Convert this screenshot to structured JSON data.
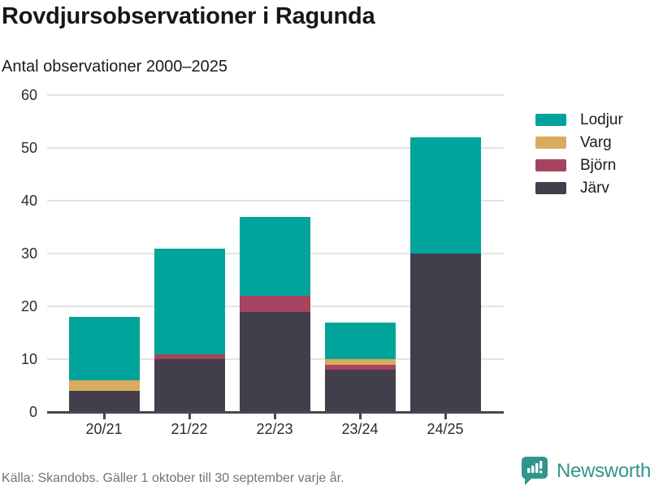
{
  "header": {
    "title": "Rovdjursobservationer i Ragunda",
    "subtitle": "Antal observationer 2000–2025"
  },
  "chart_data": {
    "type": "bar",
    "stacked": true,
    "title": "Rovdjursobservationer i Ragunda",
    "subtitle": "Antal observationer 2000–2025",
    "categories": [
      "20/21",
      "21/22",
      "22/23",
      "23/24",
      "24/25"
    ],
    "series": [
      {
        "name": "Järv",
        "color": "#423E4C",
        "values": [
          4,
          10,
          19,
          8,
          30
        ]
      },
      {
        "name": "Björn",
        "color": "#A6435F",
        "values": [
          0,
          1,
          3,
          1,
          0
        ]
      },
      {
        "name": "Varg",
        "color": "#D8AC5C",
        "values": [
          2,
          0,
          0,
          1,
          0
        ]
      },
      {
        "name": "Lodjur",
        "color": "#00A49A",
        "values": [
          12,
          20,
          15,
          7,
          22
        ]
      }
    ],
    "totals": [
      18,
      31,
      37,
      17,
      52
    ],
    "ylim": [
      0,
      60
    ],
    "yticks": [
      0,
      10,
      20,
      30,
      40,
      50,
      60
    ],
    "grid": true,
    "legend_order": [
      "Lodjur",
      "Varg",
      "Björn",
      "Järv"
    ],
    "legend_position": "right"
  },
  "footer": {
    "source": "Källa: Skandobs. Gäller 1 oktober till 30 september varje år."
  },
  "branding": {
    "name": "Newsworthy",
    "color": "#2F968C"
  }
}
